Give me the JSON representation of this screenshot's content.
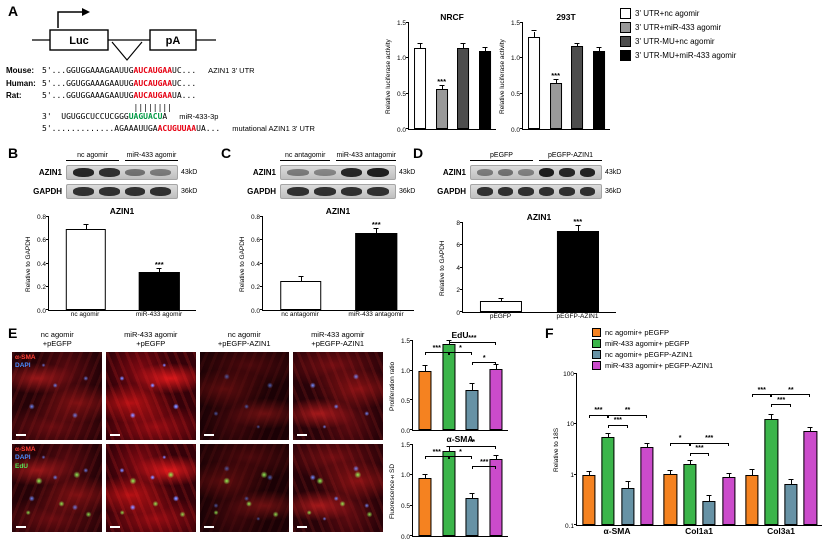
{
  "panel_labels": {
    "A": "A",
    "B": "B",
    "C": "C",
    "D": "D",
    "E": "E",
    "F": "F"
  },
  "panelA": {
    "construct": {
      "luc": "Luc",
      "pa": "pA"
    },
    "alignment": {
      "rows": [
        {
          "name": "Mouse:",
          "pre": "5'...GGUGGAAAGAAUUG",
          "hl": "AUCAUGAA",
          "hl_color": "red",
          "post": "UC...",
          "note": "AZIN1 3' UTR"
        },
        {
          "name": "Human:",
          "pre": "5'...GGUGGAAAGAAUUG",
          "hl": "AUCAUGAA",
          "hl_color": "red",
          "post": "UC...",
          "note": ""
        },
        {
          "name": "Rat:",
          "pre": "5'...GGUGGAAAGAAUUG",
          "hl": "AUCAUGAA",
          "hl_color": "red",
          "post": "UA...",
          "note": ""
        },
        {
          "name": "",
          "pre": "3'  UGUGGCUCCUCGGG",
          "hl": "UAGUACU",
          "hl_color": "green",
          "post": "A",
          "note": "miR-433-3p"
        },
        {
          "name": "",
          "pre": "5'.............AGAAAUUGA",
          "hl": "ACUGUUAA",
          "hl_color": "red",
          "post": "UA...",
          "note": "mutational AZIN1 3' UTR"
        }
      ],
      "pipes": "||||||||"
    },
    "legend": [
      {
        "label": "3' UTR+nc agomir",
        "color": "#ffffff"
      },
      {
        "label": "3' UTR+miR-433 agomir",
        "color": "#999999"
      },
      {
        "label": "3' UTR-MU+nc agomir",
        "color": "#4d4d4d"
      },
      {
        "label": "3' UTR-MU+miR-433 agomir",
        "color": "#000000"
      }
    ]
  },
  "blots": {
    "B": {
      "groups": [
        "nc agomir",
        "miR-433 agomir"
      ],
      "rows": [
        {
          "label": "AZIN1",
          "marker": "43kD",
          "bands": [
            0.9,
            0.85,
            0.5,
            0.45
          ]
        },
        {
          "label": "GAPDH",
          "marker": "36kD",
          "bands": [
            0.85,
            0.85,
            0.85,
            0.85
          ]
        }
      ]
    },
    "C": {
      "groups": [
        "nc antagomir",
        "miR-433 antagomir"
      ],
      "rows": [
        {
          "label": "AZIN1",
          "marker": "43kD",
          "bands": [
            0.45,
            0.4,
            0.9,
            0.95
          ]
        },
        {
          "label": "GAPDH",
          "marker": "36kD",
          "bands": [
            0.85,
            0.85,
            0.85,
            0.85
          ]
        }
      ]
    },
    "D": {
      "groups": [
        "pEGFP",
        "pEGFP-AZIN1"
      ],
      "rows": [
        {
          "label": "AZIN1",
          "marker": "43kD",
          "bands": [
            0.45,
            0.5,
            0.42,
            0.95,
            0.9,
            0.92
          ]
        },
        {
          "label": "GAPDH",
          "marker": "36kD",
          "bands": [
            0.85,
            0.85,
            0.85,
            0.85,
            0.85,
            0.85
          ]
        }
      ]
    }
  },
  "panelE": {
    "columns": [
      [
        "nc agomir",
        "+pEGFP"
      ],
      [
        "miR-433 agomir",
        "+pEGFP"
      ],
      [
        "nc agomir",
        "+pEGFP-AZIN1"
      ],
      [
        "miR-433 agomir",
        "+pEGFP-AZIN1"
      ]
    ],
    "row_labels": [
      [
        {
          "text": "α-SMA",
          "color": "#ff4136"
        },
        {
          "text": "DAPI",
          "color": "#4b8bff"
        }
      ],
      [
        {
          "text": "α-SMA",
          "color": "#ff4136"
        },
        {
          "text": "DAPI",
          "color": "#4b8bff"
        },
        {
          "text": "EdU",
          "color": "#57e657"
        }
      ]
    ]
  },
  "legendF": [
    {
      "label": "nc agomir+ pEGFP",
      "color": "#F58220"
    },
    {
      "label": "miR-433 agomir+ pEGFP",
      "color": "#3BB54A"
    },
    {
      "label": "nc agomir+ pEGFP-AZIN1",
      "color": "#6792A5"
    },
    {
      "label": "miR-433 agomir+ pEGFP-AZIN1",
      "color": "#CB4BCB"
    }
  ],
  "chart_data": [
    {
      "id": "nrcf",
      "type": "bar",
      "title": "NRCF",
      "ylabel": "Relative luciferase activity",
      "ymax": 1.5,
      "yticks": [
        "0.0",
        "0.5",
        "1.0",
        "1.5"
      ],
      "categories": [
        "3' UTR+nc agomir",
        "3' UTR+miR-433 agomir",
        "3' UTR-MU+nc agomir",
        "3' UTR-MU+miR-433 agomir"
      ],
      "values": [
        1.15,
        0.57,
        1.15,
        1.1
      ],
      "errors": [
        0.05,
        0.04,
        0.05,
        0.05
      ],
      "colors": [
        "#ffffff",
        "#999999",
        "#4d4d4d",
        "#000000"
      ],
      "stars": {
        "1": "***"
      }
    },
    {
      "id": "t293",
      "type": "bar",
      "title": "293T",
      "ylabel": "Relative luciferase activity",
      "ymax": 1.5,
      "yticks": [
        "0.0",
        "0.5",
        "1.0",
        "1.5"
      ],
      "categories": [
        "3' UTR+nc agomir",
        "3' UTR+miR-433 agomir",
        "3' UTR-MU+nc agomir",
        "3' UTR-MU+miR-433 agomir"
      ],
      "values": [
        1.3,
        0.65,
        1.17,
        1.1
      ],
      "errors": [
        0.08,
        0.05,
        0.04,
        0.04
      ],
      "colors": [
        "#ffffff",
        "#999999",
        "#4d4d4d",
        "#000000"
      ],
      "stars": {
        "1": "***"
      }
    },
    {
      "id": "wb_b",
      "type": "bar",
      "title": "AZIN1",
      "ylabel": "Relative to GAPDH",
      "ymax": 0.8,
      "yticks": [
        "0.0",
        "0.2",
        "0.4",
        "0.6",
        "0.8"
      ],
      "show_xlabels": true,
      "categories": [
        "nc agomir",
        "miR-433 agomir"
      ],
      "values": [
        0.7,
        0.33
      ],
      "errors": [
        0.03,
        0.02
      ],
      "colors": [
        "#ffffff",
        "#000000"
      ],
      "stars": {
        "1": "***"
      }
    },
    {
      "id": "wb_c",
      "type": "bar",
      "title": "AZIN1",
      "ylabel": "Relative to GAPDH",
      "ymax": 0.8,
      "yticks": [
        "0.0",
        "0.2",
        "0.4",
        "0.6",
        "0.8"
      ],
      "show_xlabels": true,
      "categories": [
        "nc antagomir",
        "miR-433 antagomir"
      ],
      "values": [
        0.25,
        0.66
      ],
      "errors": [
        0.03,
        0.04
      ],
      "colors": [
        "#ffffff",
        "#000000"
      ],
      "stars": {
        "1": "***"
      }
    },
    {
      "id": "wb_d",
      "type": "bar",
      "title": "AZIN1",
      "ylabel": "Relative to GAPDH",
      "ymax": 8,
      "yticks": [
        "0",
        "2",
        "4",
        "6",
        "8"
      ],
      "show_xlabels": true,
      "categories": [
        "pEGFP",
        "pEGFP-AZIN1"
      ],
      "values": [
        1.0,
        7.3
      ],
      "errors": [
        0.15,
        0.4
      ],
      "colors": [
        "#ffffff",
        "#000000"
      ],
      "stars": {
        "1": "***"
      }
    },
    {
      "id": "edu",
      "type": "bar",
      "title": "EdU",
      "ylabel": "Proliferation ratio",
      "ymax": 1.5,
      "yticks": [
        "0.0",
        "0.5",
        "1.0",
        "1.5"
      ],
      "categories": [
        "nc agomir+pEGFP",
        "miR-433 agomir+pEGFP",
        "nc agomir+pEGFP-AZIN1",
        "miR-433 agomir+pEGFP-AZIN1"
      ],
      "values": [
        1.0,
        1.45,
        0.68,
        1.02
      ],
      "errors": [
        0.08,
        0.07,
        0.1,
        0.08
      ],
      "colors": [
        "#F58220",
        "#3BB54A",
        "#6792A5",
        "#CB4BCB"
      ],
      "brackets": [
        {
          "from": 1,
          "to": 3,
          "text": "***",
          "level": 0
        },
        {
          "from": 0,
          "to": 1,
          "text": "***",
          "level": 1
        },
        {
          "from": 1,
          "to": 2,
          "text": "*",
          "level": 1
        },
        {
          "from": 2,
          "to": 3,
          "text": "*",
          "level": 2
        }
      ]
    },
    {
      "id": "asma",
      "type": "bar",
      "title": "α-SMA",
      "ylabel": "Fluorescence±SD",
      "ymax": 1.5,
      "yticks": [
        "0.0",
        "0.5",
        "1.0",
        "1.5"
      ],
      "categories": [
        "nc agomir+pEGFP",
        "miR-433 agomir+pEGFP",
        "nc agomir+pEGFP-AZIN1",
        "miR-433 agomir+pEGFP-AZIN1"
      ],
      "values": [
        0.95,
        1.4,
        0.62,
        1.27
      ],
      "errors": [
        0.06,
        0.06,
        0.08,
        0.05
      ],
      "colors": [
        "#F58220",
        "#3BB54A",
        "#6792A5",
        "#CB4BCB"
      ],
      "brackets": [
        {
          "from": 1,
          "to": 3,
          "text": "**",
          "level": 0
        },
        {
          "from": 0,
          "to": 1,
          "text": "***",
          "level": 1
        },
        {
          "from": 1,
          "to": 2,
          "text": "*",
          "level": 1
        },
        {
          "from": 2,
          "to": 3,
          "text": "***",
          "level": 2
        }
      ]
    },
    {
      "id": "qpcr",
      "type": "grouped-bar",
      "log": true,
      "ymin": 0.1,
      "ymax": 100,
      "ylabel": "Relative to 18S",
      "yticks": [
        "0.1",
        "1",
        "10",
        "100"
      ],
      "categories": [
        "α-SMA",
        "Col1a1",
        "Col3a1"
      ],
      "series": [
        {
          "name": "nc agomir+ pEGFP",
          "color": "#F58220",
          "values": [
            1.0,
            1.05,
            1.0
          ],
          "errors": [
            0.15,
            0.15,
            0.25
          ]
        },
        {
          "name": "miR-433 agomir+ pEGFP",
          "color": "#3BB54A",
          "values": [
            5.5,
            1.65,
            13.0
          ],
          "errors": [
            0.8,
            0.25,
            2.0
          ]
        },
        {
          "name": "nc agomir+ pEGFP-AZIN1",
          "color": "#6792A5",
          "values": [
            0.55,
            0.3,
            0.65
          ],
          "errors": [
            0.15,
            0.08,
            0.15
          ]
        },
        {
          "name": "miR-433 agomir+ pEGFP-AZIN1",
          "color": "#CB4BCB",
          "values": [
            3.6,
            0.9,
            7.5
          ],
          "errors": [
            0.5,
            0.15,
            1.0
          ]
        }
      ],
      "group_brackets": [
        [
          {
            "from": 0,
            "to": 1,
            "text": "***",
            "level": 0
          },
          {
            "from": 1,
            "to": 3,
            "text": "**",
            "level": 0
          },
          {
            "from": 1,
            "to": 2,
            "text": "***",
            "level": 1
          }
        ],
        [
          {
            "from": 0,
            "to": 1,
            "text": "*",
            "level": 0
          },
          {
            "from": 1,
            "to": 3,
            "text": "***",
            "level": 0
          },
          {
            "from": 1,
            "to": 2,
            "text": "***",
            "level": 1
          }
        ],
        [
          {
            "from": 0,
            "to": 1,
            "text": "***",
            "level": 0
          },
          {
            "from": 1,
            "to": 3,
            "text": "**",
            "level": 0
          },
          {
            "from": 1,
            "to": 2,
            "text": "***",
            "level": 1
          }
        ]
      ]
    }
  ]
}
